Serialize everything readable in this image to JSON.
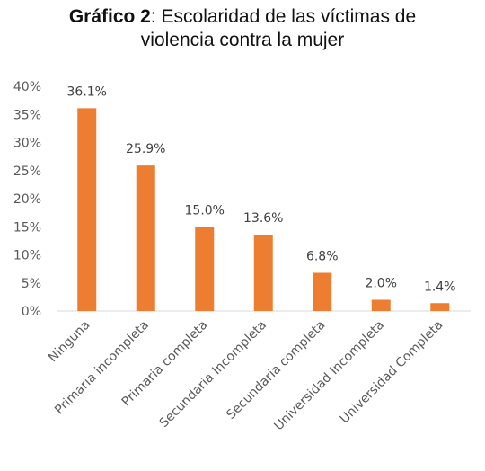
{
  "chart_data": {
    "type": "bar",
    "title_bold": "Gráfico 2",
    "title_rest": ": Escolaridad de las víctimas de",
    "title_line2": "violencia contra la mujer",
    "categories": [
      "Ninguna",
      "Primaria incompleta",
      "Primaria completa",
      "Secundaria Incompleta",
      "Secundaria completa",
      "Universidad Incompleta",
      "Universidad Completa"
    ],
    "values": [
      36.1,
      25.9,
      15.0,
      13.6,
      6.8,
      2.0,
      1.4
    ],
    "data_labels": [
      "36.1%",
      "25.9%",
      "15.0%",
      "13.6%",
      "6.8%",
      "2.0%",
      "1.4%"
    ],
    "yticks": [
      "0%",
      "5%",
      "10%",
      "15%",
      "20%",
      "25%",
      "30%",
      "35%",
      "40%"
    ],
    "ylim": [
      0,
      40
    ],
    "grid": false,
    "bar_color": "#ED7D31"
  }
}
